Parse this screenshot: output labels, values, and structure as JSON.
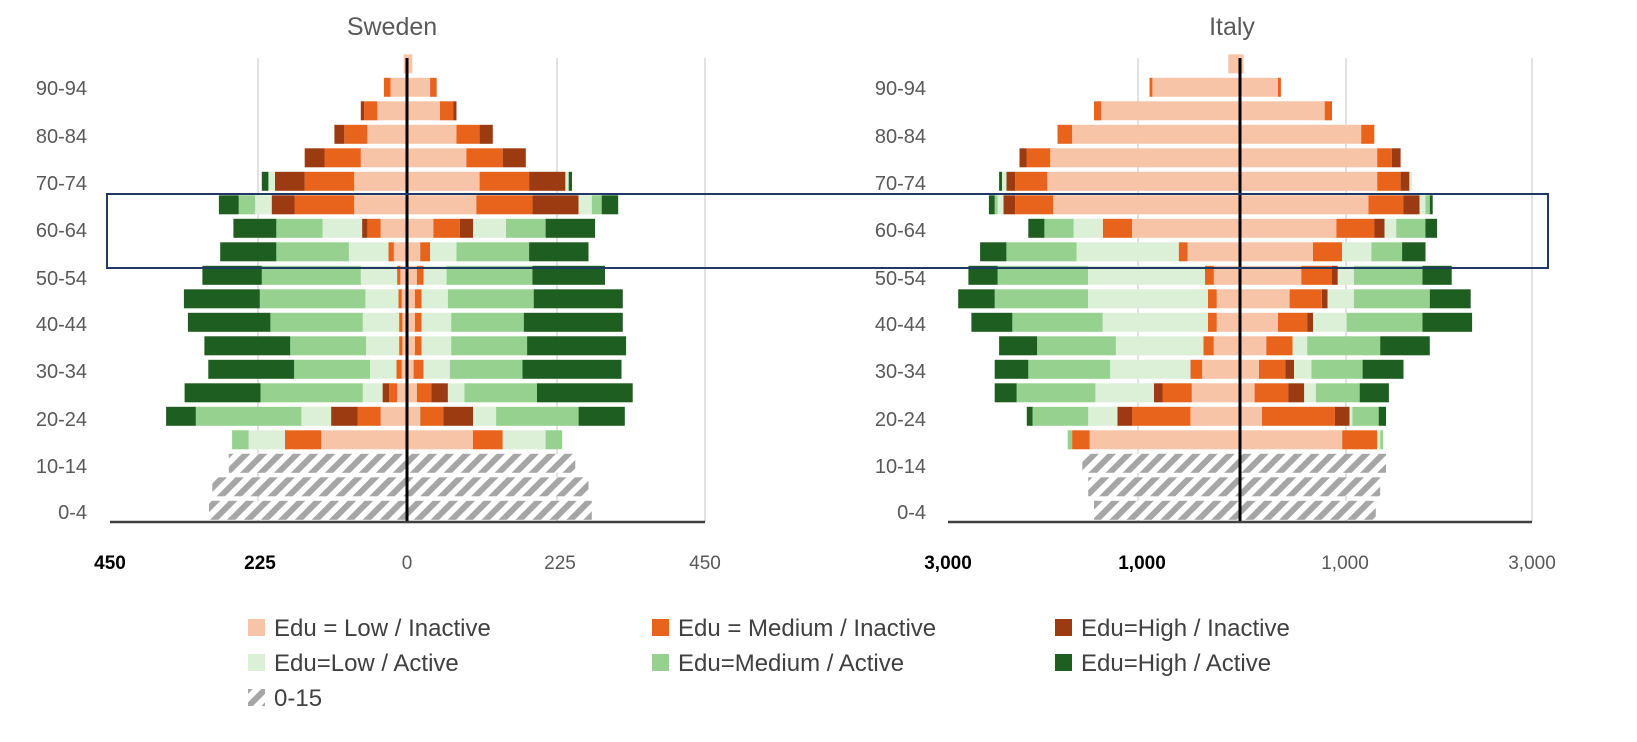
{
  "colors": {
    "low_inactive": "#f8c4a8",
    "medium_inactive": "#e8641c",
    "high_inactive": "#9c3b12",
    "low_active": "#dcf0d8",
    "medium_active": "#96d18f",
    "high_active": "#1e5e20",
    "under15": "#a6a6a6",
    "grid": "#d9d9d9",
    "highlight_box": "#1f3864"
  },
  "legend": [
    {
      "key": "low_inactive",
      "label": "Edu = Low / Inactive"
    },
    {
      "key": "medium_inactive",
      "label": "Edu = Medium / Inactive"
    },
    {
      "key": "high_inactive",
      "label": "Edu=High / Inactive"
    },
    {
      "key": "low_active",
      "label": "Edu=Low / Active"
    },
    {
      "key": "medium_active",
      "label": "Edu=Medium / Active"
    },
    {
      "key": "high_active",
      "label": "Edu=High / Active"
    },
    {
      "key": "under15",
      "label": "0-15",
      "pattern": "hatch"
    }
  ],
  "highlight": {
    "from_age": "55-59",
    "to_age": "65-69"
  },
  "chart_data": [
    {
      "type": "bar",
      "orientation": "horizontal-pyramid",
      "title": "Sweden",
      "age_groups": [
        "0-4",
        "5-9",
        "10-14",
        "15-19",
        "20-24",
        "25-29",
        "30-34",
        "35-39",
        "40-44",
        "45-49",
        "50-54",
        "55-59",
        "60-64",
        "65-69",
        "70-74",
        "75-79",
        "80-84",
        "85-89",
        "90-94",
        "95-99"
      ],
      "y_tick_labels": [
        "90-94",
        "80-84",
        "70-74",
        "60-64",
        "50-54",
        "40-44",
        "30-34",
        "20-24",
        "10-14",
        "0-4"
      ],
      "x_tick_labels": [
        "450",
        "225",
        "0",
        "225",
        "450"
      ],
      "xlim": [
        -450,
        450
      ],
      "grid": true,
      "series_order": [
        "under15",
        "low_inactive",
        "medium_inactive",
        "high_inactive",
        "low_active",
        "medium_active",
        "high_active"
      ],
      "left": {
        "under15": [
          300,
          295,
          270,
          0,
          0,
          0,
          0,
          0,
          0,
          0,
          0,
          0,
          0,
          0,
          0,
          0,
          0,
          0,
          0,
          0
        ],
        "low_inactive": [
          0,
          0,
          0,
          130,
          40,
          15,
          8,
          7,
          7,
          8,
          10,
          20,
          40,
          80,
          80,
          70,
          60,
          45,
          25,
          5
        ],
        "medium_inactive": [
          0,
          0,
          0,
          55,
          35,
          12,
          8,
          5,
          5,
          5,
          5,
          8,
          20,
          90,
          75,
          55,
          35,
          20,
          10,
          0
        ],
        "high_inactive": [
          0,
          0,
          0,
          0,
          40,
          10,
          0,
          0,
          0,
          0,
          0,
          0,
          8,
          35,
          45,
          30,
          15,
          5,
          0,
          0
        ],
        "low_active": [
          0,
          0,
          0,
          55,
          45,
          30,
          40,
          50,
          55,
          50,
          55,
          60,
          60,
          25,
          10,
          0,
          0,
          0,
          0,
          0
        ],
        "medium_active": [
          0,
          0,
          0,
          25,
          160,
          155,
          115,
          115,
          140,
          160,
          150,
          110,
          70,
          25,
          0,
          0,
          0,
          0,
          0,
          0
        ],
        "high_active": [
          0,
          0,
          0,
          0,
          45,
          115,
          130,
          130,
          125,
          115,
          90,
          85,
          65,
          30,
          10,
          0,
          0,
          0,
          0,
          0
        ]
      },
      "right": {
        "under15": [
          280,
          275,
          255,
          0,
          0,
          0,
          0,
          0,
          0,
          0,
          0,
          0,
          0,
          0,
          0,
          0,
          0,
          0,
          0,
          0
        ],
        "low_inactive": [
          0,
          0,
          0,
          100,
          20,
          15,
          10,
          12,
          12,
          12,
          15,
          20,
          40,
          105,
          110,
          90,
          75,
          50,
          35,
          8
        ],
        "medium_inactive": [
          0,
          0,
          0,
          45,
          35,
          22,
          15,
          10,
          10,
          10,
          10,
          15,
          40,
          85,
          75,
          55,
          35,
          20,
          10,
          0
        ],
        "high_inactive": [
          0,
          0,
          0,
          0,
          45,
          25,
          0,
          0,
          0,
          0,
          0,
          0,
          20,
          70,
          55,
          35,
          20,
          5,
          0,
          0
        ],
        "low_active": [
          0,
          0,
          0,
          65,
          35,
          25,
          40,
          45,
          45,
          40,
          35,
          40,
          50,
          20,
          5,
          0,
          0,
          0,
          0,
          0
        ],
        "medium_active": [
          0,
          0,
          0,
          25,
          125,
          110,
          110,
          115,
          110,
          130,
          130,
          110,
          60,
          15,
          0,
          0,
          0,
          0,
          0,
          0
        ],
        "high_active": [
          0,
          0,
          0,
          0,
          70,
          145,
          150,
          150,
          150,
          135,
          110,
          90,
          75,
          25,
          5,
          0,
          0,
          0,
          0,
          0
        ]
      }
    },
    {
      "type": "bar",
      "orientation": "horizontal-pyramid",
      "title": "Italy",
      "age_groups": [
        "0-4",
        "5-9",
        "10-14",
        "15-19",
        "20-24",
        "25-29",
        "30-34",
        "35-39",
        "40-44",
        "45-49",
        "50-54",
        "55-59",
        "60-64",
        "65-69",
        "70-74",
        "75-79",
        "80-84",
        "85-89",
        "90-94",
        "95-99"
      ],
      "y_tick_labels": [
        "90-94",
        "80-84",
        "70-74",
        "60-64",
        "50-54",
        "40-44",
        "30-34",
        "20-24",
        "10-14",
        "0-4"
      ],
      "x_tick_labels": [
        "3,000",
        "1,000",
        "1,000",
        "3,000"
      ],
      "xlim": [
        -2000,
        2000
      ],
      "grid": true,
      "series_order": [
        "under15",
        "low_inactive",
        "medium_inactive",
        "high_inactive",
        "low_active",
        "medium_active",
        "high_active"
      ],
      "left": {
        "under15": [
          1000,
          1040,
          1080,
          0,
          0,
          0,
          0,
          0,
          0,
          0,
          0,
          0,
          0,
          0,
          0,
          0,
          0,
          0,
          0,
          0
        ],
        "low_inactive": [
          0,
          0,
          0,
          1030,
          340,
          330,
          260,
          180,
          160,
          160,
          180,
          360,
          740,
          1280,
          1320,
          1300,
          1150,
          950,
          600,
          80
        ],
        "medium_inactive": [
          0,
          0,
          0,
          120,
          400,
          200,
          80,
          70,
          60,
          60,
          60,
          60,
          200,
          260,
          220,
          160,
          100,
          50,
          20,
          0
        ],
        "high_inactive": [
          0,
          0,
          0,
          0,
          100,
          60,
          0,
          0,
          0,
          0,
          0,
          0,
          0,
          80,
          60,
          50,
          0,
          0,
          0,
          0
        ],
        "low_active": [
          0,
          0,
          0,
          0,
          200,
          400,
          550,
          600,
          720,
          820,
          800,
          700,
          200,
          40,
          30,
          0,
          0,
          0,
          0,
          0
        ],
        "medium_active": [
          0,
          0,
          0,
          30,
          380,
          540,
          560,
          540,
          620,
          640,
          620,
          480,
          200,
          20,
          0,
          0,
          0,
          0,
          0,
          0
        ],
        "high_active": [
          0,
          0,
          0,
          0,
          40,
          150,
          230,
          260,
          280,
          250,
          200,
          180,
          110,
          40,
          20,
          0,
          0,
          0,
          0,
          0
        ]
      },
      "right": {
        "under15": [
          930,
          960,
          1000,
          0,
          0,
          0,
          0,
          0,
          0,
          0,
          0,
          0,
          0,
          0,
          0,
          0,
          0,
          0,
          0,
          0
        ],
        "low_inactive": [
          0,
          0,
          0,
          700,
          150,
          100,
          130,
          180,
          260,
          340,
          420,
          500,
          660,
          880,
          940,
          940,
          830,
          580,
          260,
          25
        ],
        "medium_inactive": [
          0,
          0,
          0,
          240,
          500,
          230,
          180,
          180,
          200,
          220,
          210,
          200,
          260,
          240,
          160,
          100,
          90,
          50,
          20,
          0
        ],
        "high_inactive": [
          0,
          0,
          0,
          0,
          100,
          110,
          60,
          0,
          40,
          40,
          40,
          0,
          70,
          110,
          60,
          60,
          0,
          0,
          0,
          0
        ],
        "low_active": [
          0,
          0,
          0,
          20,
          20,
          80,
          120,
          100,
          230,
          180,
          110,
          200,
          80,
          40,
          20,
          0,
          0,
          0,
          0,
          0
        ],
        "medium_active": [
          0,
          0,
          0,
          20,
          180,
          300,
          350,
          500,
          520,
          520,
          470,
          210,
          200,
          30,
          0,
          0,
          0,
          0,
          0,
          0
        ],
        "high_active": [
          0,
          0,
          0,
          0,
          50,
          200,
          280,
          340,
          340,
          280,
          200,
          160,
          80,
          20,
          0,
          0,
          0,
          0,
          0,
          0
        ]
      }
    }
  ]
}
